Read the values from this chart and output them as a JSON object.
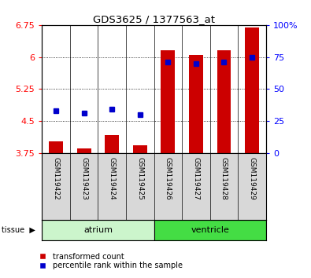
{
  "title": "GDS3625 / 1377563_at",
  "samples": [
    "GSM119422",
    "GSM119423",
    "GSM119424",
    "GSM119425",
    "GSM119426",
    "GSM119427",
    "GSM119428",
    "GSM119429"
  ],
  "red_values": [
    4.02,
    3.85,
    4.17,
    3.92,
    6.15,
    6.05,
    6.15,
    6.7
  ],
  "blue_percentiles": [
    33,
    31,
    34,
    30,
    71,
    70,
    71,
    75
  ],
  "ymin": 3.75,
  "ymax": 6.75,
  "yticks_left": [
    3.75,
    4.5,
    5.25,
    6.0,
    6.75
  ],
  "yticks_right": [
    0,
    25,
    50,
    75,
    100
  ],
  "ytick_labels_left": [
    "3.75",
    "4.5",
    "5.25",
    "6",
    "6.75"
  ],
  "ytick_labels_right": [
    "0",
    "25",
    "50",
    "75",
    "100%"
  ],
  "groups": [
    {
      "label": "atrium",
      "indices": [
        0,
        1,
        2,
        3
      ],
      "color": "#ccf5cc"
    },
    {
      "label": "ventricle",
      "indices": [
        4,
        5,
        6,
        7
      ],
      "color": "#44dd44"
    }
  ],
  "bar_color": "#cc0000",
  "dot_color": "#0000cc",
  "bar_width": 0.5,
  "panel_bg": "#d8d8d8",
  "bg_color": "#ffffff"
}
